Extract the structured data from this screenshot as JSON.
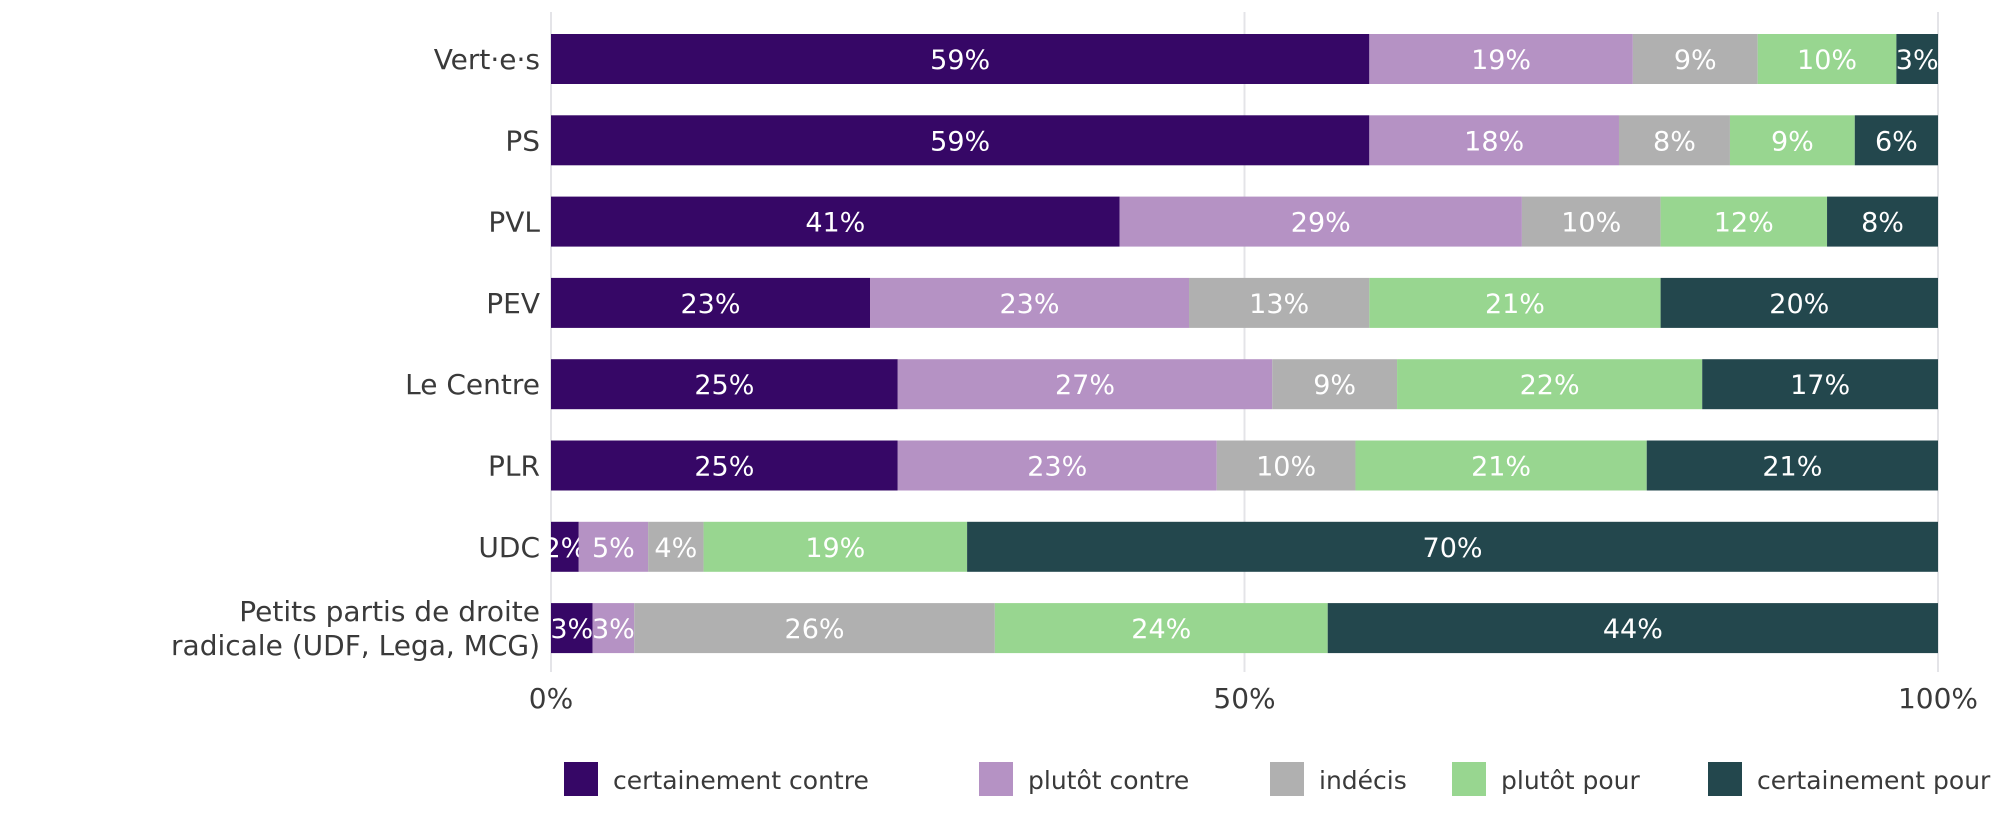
{
  "chart_data": {
    "type": "bar",
    "orientation": "horizontal",
    "stacked": true,
    "title": "",
    "xlabel": "",
    "ylabel": "",
    "xlim": [
      0,
      100
    ],
    "grid": true,
    "legend_position": "bottom",
    "categories": [
      "Vert·e·s",
      "PS",
      "PVL",
      "PEV",
      "Le Centre",
      "PLR",
      "UDC",
      "Petits partis de droite\nradicale (UDF, Lega, MCG)"
    ],
    "x_ticks": [
      {
        "value": 0,
        "label": "0%"
      },
      {
        "value": 50,
        "label": "50%"
      },
      {
        "value": 100,
        "label": "100%"
      }
    ],
    "series": [
      {
        "name": "certainement contre",
        "color": "#360766",
        "values": [
          59,
          59,
          41,
          23,
          25,
          25,
          2,
          3
        ],
        "labels": [
          "59%",
          "59%",
          "41%",
          "23%",
          "25%",
          "25%",
          "2%",
          "3%"
        ]
      },
      {
        "name": "plutôt contre",
        "color": "#b592c4",
        "values": [
          19,
          18,
          29,
          23,
          27,
          23,
          5,
          3
        ],
        "labels": [
          "19%",
          "18%",
          "29%",
          "23%",
          "27%",
          "23%",
          "5%",
          "3%"
        ]
      },
      {
        "name": "indécis",
        "color": "#b0b0b0",
        "values": [
          9,
          8,
          10,
          13,
          9,
          10,
          4,
          26
        ],
        "labels": [
          "9%",
          "8%",
          "10%",
          "13%",
          "9%",
          "10%",
          "4%",
          "26%"
        ]
      },
      {
        "name": "plutôt pour",
        "color": "#98d690",
        "values": [
          10,
          9,
          12,
          21,
          22,
          21,
          19,
          24
        ],
        "labels": [
          "10%",
          "9%",
          "12%",
          "21%",
          "22%",
          "21%",
          "19%",
          "24%"
        ]
      },
      {
        "name": "certainement pour",
        "color": "#23474d",
        "values": [
          3,
          6,
          8,
          20,
          17,
          21,
          70,
          44
        ],
        "labels": [
          "3%",
          "6%",
          "8%",
          "20%",
          "17%",
          "21%",
          "70%",
          "44%"
        ]
      }
    ]
  }
}
